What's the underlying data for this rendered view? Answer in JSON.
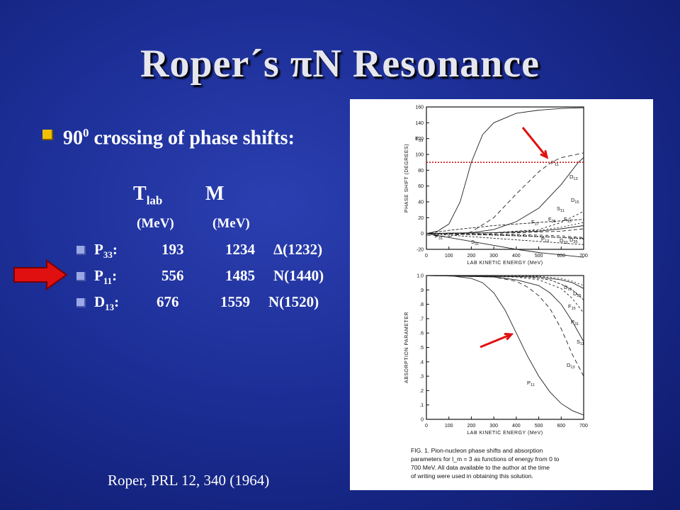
{
  "title": "Roper´s πN Resonance",
  "bullet": {
    "main": "90",
    "main_sup": "0",
    "main_rest": " crossing of phase shifts:"
  },
  "table": {
    "col_t": "T",
    "col_t_sub": "lab",
    "col_m": "M",
    "unit_t": "(MeV)",
    "unit_m": "(MeV)",
    "rows": [
      {
        "wave": "P",
        "wave_sub": "33",
        "tlab": "193",
        "mass": "1234",
        "state": "Δ(1232)"
      },
      {
        "wave": "P",
        "wave_sub": "11",
        "tlab": "556",
        "mass": "1485",
        "state": "N(1440)"
      },
      {
        "wave": "D",
        "wave_sub": "13",
        "tlab": "676",
        "mass": "1559",
        "state": "N(1520)"
      }
    ]
  },
  "citation": "Roper, PRL 12, 340 (1964)",
  "colors": {
    "arrow": "#e01010",
    "bullet": "#f0c000"
  },
  "figure": {
    "caption_lines": [
      "FIG. 1.  Pion-nucleon phase shifts and absorption",
      "parameters for l_m = 3 as functions of energy from 0 to",
      "700 MeV.  All data available to the author at the time",
      "of writing were used in obtaining this solution."
    ]
  },
  "chart_data": [
    {
      "type": "line",
      "title": "",
      "xlabel": "LAB KINETIC ENERGY (MeV)",
      "ylabel": "PHASE SHIFT (DEGREES)",
      "xlim": [
        0,
        700
      ],
      "ylim": [
        -20,
        160
      ],
      "xticks": [
        0,
        100,
        200,
        300,
        400,
        500,
        600,
        700
      ],
      "yticks": [
        -20,
        0,
        20,
        40,
        60,
        80,
        100,
        120,
        140,
        160
      ],
      "reference_line_y": 90,
      "series": [
        {
          "name": "P33",
          "x": [
            0,
            50,
            100,
            150,
            200,
            250,
            300,
            400,
            500,
            600,
            700
          ],
          "y": [
            0,
            3,
            12,
            40,
            90,
            125,
            140,
            152,
            156,
            158,
            159
          ]
        },
        {
          "name": "P11",
          "x": [
            0,
            100,
            200,
            300,
            400,
            500,
            556,
            600,
            700
          ],
          "y": [
            -2,
            -4,
            2,
            20,
            50,
            78,
            90,
            96,
            102
          ]
        },
        {
          "name": "D13",
          "x": [
            0,
            200,
            300,
            400,
            500,
            600,
            676,
            700
          ],
          "y": [
            0,
            1,
            5,
            15,
            32,
            62,
            90,
            96
          ]
        },
        {
          "name": "D15",
          "x": [
            0,
            300,
            500,
            600,
            700
          ],
          "y": [
            0,
            1,
            5,
            14,
            28
          ]
        },
        {
          "name": "S11",
          "x": [
            0,
            100,
            200,
            300,
            400,
            500,
            600,
            700
          ],
          "y": [
            0,
            4,
            7,
            10,
            12,
            14,
            16,
            18
          ]
        },
        {
          "name": "F35",
          "x": [
            0,
            300,
            500,
            600,
            700
          ],
          "y": [
            0,
            1,
            3,
            6,
            10
          ]
        },
        {
          "name": "F15",
          "x": [
            0,
            300,
            500,
            600,
            700
          ],
          "y": [
            0,
            1,
            4,
            8,
            14
          ]
        },
        {
          "name": "F17",
          "x": [
            0,
            400,
            600,
            700
          ],
          "y": [
            0,
            1,
            3,
            6
          ]
        },
        {
          "name": "P31",
          "x": [
            0,
            200,
            400,
            600,
            700
          ],
          "y": [
            0,
            -4,
            -8,
            -12,
            -14
          ]
        },
        {
          "name": "S31",
          "x": [
            0,
            100,
            200,
            300,
            400,
            500,
            600,
            700
          ],
          "y": [
            0,
            -5,
            -10,
            -15,
            -20,
            -24,
            -27,
            -30
          ]
        },
        {
          "name": "P13",
          "x": [
            0,
            300,
            500,
            700
          ],
          "y": [
            0,
            -2,
            -4,
            -6
          ]
        },
        {
          "name": "D33",
          "x": [
            0,
            400,
            600,
            700
          ],
          "y": [
            0,
            -2,
            -5,
            -7
          ]
        },
        {
          "name": "D35",
          "x": [
            0,
            400,
            600,
            700
          ],
          "y": [
            0,
            -1,
            -3,
            -5
          ]
        }
      ]
    },
    {
      "type": "line",
      "title": "",
      "xlabel": "LAB KINETIC ENERGY (MeV)",
      "ylabel": "ABSORPTION PARAMETER",
      "xlim": [
        0,
        700
      ],
      "ylim": [
        0,
        1.0
      ],
      "xticks": [
        0,
        100,
        200,
        300,
        400,
        500,
        600,
        700
      ],
      "yticks": [
        0,
        0.1,
        0.2,
        0.3,
        0.4,
        0.5,
        0.6,
        0.7,
        0.8,
        0.9,
        1.0
      ],
      "series": [
        {
          "name": "P11",
          "x": [
            0,
            100,
            200,
            250,
            300,
            350,
            400,
            450,
            500,
            550,
            600,
            650,
            700
          ],
          "y": [
            1,
            1,
            0.98,
            0.95,
            0.88,
            0.76,
            0.6,
            0.44,
            0.3,
            0.19,
            0.11,
            0.06,
            0.03
          ]
        },
        {
          "name": "D13",
          "x": [
            0,
            300,
            400,
            450,
            500,
            550,
            600,
            650,
            700
          ],
          "y": [
            1,
            0.99,
            0.96,
            0.92,
            0.86,
            0.77,
            0.63,
            0.45,
            0.3
          ]
        },
        {
          "name": "S11",
          "x": [
            0,
            300,
            400,
            500,
            550,
            600,
            650,
            700
          ],
          "y": [
            1,
            0.99,
            0.97,
            0.93,
            0.88,
            0.8,
            0.68,
            0.54
          ]
        },
        {
          "name": "P31",
          "x": [
            0,
            400,
            500,
            600,
            650,
            700
          ],
          "y": [
            1,
            0.99,
            0.97,
            0.91,
            0.84,
            0.74
          ]
        },
        {
          "name": "F15",
          "x": [
            0,
            450,
            550,
            600,
            650,
            700
          ],
          "y": [
            1,
            0.99,
            0.97,
            0.94,
            0.9,
            0.83
          ]
        },
        {
          "name": "D35",
          "x": [
            0,
            500,
            600,
            650,
            700
          ],
          "y": [
            1,
            0.99,
            0.97,
            0.95,
            0.91
          ]
        },
        {
          "name": "D15",
          "x": [
            0,
            500,
            600,
            650,
            700
          ],
          "y": [
            1,
            0.995,
            0.98,
            0.96,
            0.93
          ]
        }
      ]
    }
  ]
}
